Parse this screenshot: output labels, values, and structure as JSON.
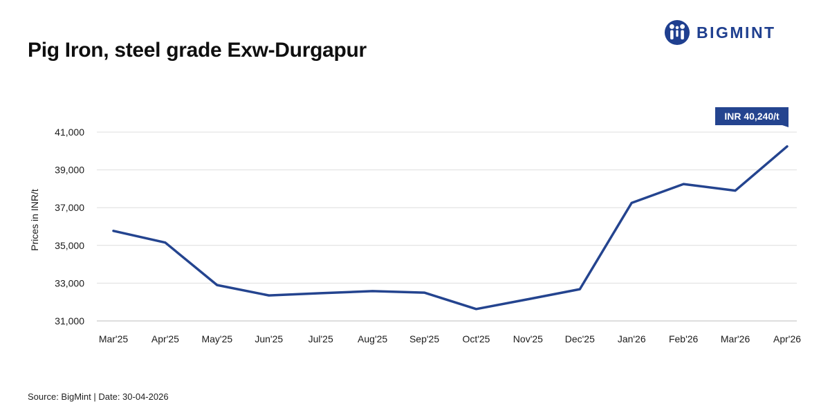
{
  "title": "Pig Iron, steel grade Exw-Durgapur",
  "brand": {
    "name": "BIGMINT",
    "icon": "bigmint-logo-icon",
    "color": "#1f3f8f"
  },
  "footer": "Source: BigMint | Date: 30-04-2026",
  "chart_data": {
    "type": "line",
    "title": "Pig Iron, steel grade Exw-Durgapur",
    "xlabel": "",
    "ylabel": "Prices in INR/t",
    "categories": [
      "Mar'25",
      "Apr'25",
      "May'25",
      "Jun'25",
      "Jul'25",
      "Aug'25",
      "Sep'25",
      "Oct'25",
      "Nov'25",
      "Dec'25",
      "Jan'26",
      "Feb'26",
      "Mar'26",
      "Apr'26"
    ],
    "series": [
      {
        "values": [
          35770,
          35150,
          32900,
          32350,
          32470,
          32580,
          32500,
          31630,
          32150,
          32680,
          37250,
          38250,
          37900,
          40240
        ],
        "color": "#24448f"
      }
    ],
    "ylim": [
      31000,
      41000
    ],
    "yticks": [
      31000,
      33000,
      35000,
      37000,
      39000,
      41000
    ],
    "ytick_labels": [
      "31,000",
      "33,000",
      "35,000",
      "37,000",
      "39,000",
      "41,000"
    ],
    "grid": true,
    "annotations": [
      {
        "label": "INR 40,240/t",
        "category": "Apr'26",
        "value": 40240
      }
    ]
  }
}
